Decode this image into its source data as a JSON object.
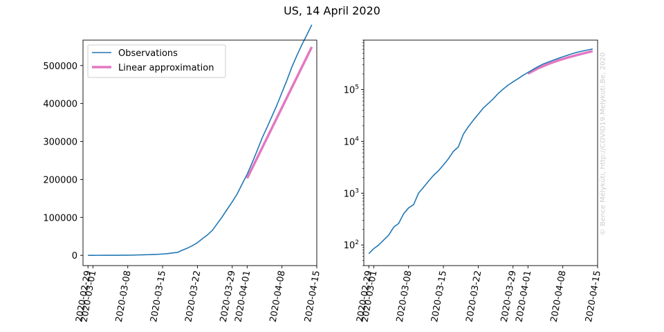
{
  "figure": {
    "title": "US, 14 April 2020",
    "watermark": "© Bence Mélykúti, http://COVID19.Melykuti.Be, 2020"
  },
  "chart_data": [
    {
      "type": "line",
      "yscale": "linear",
      "title": "",
      "xlabel": "",
      "ylabel": "",
      "xlim": [
        "2020-02-28",
        "2020-04-15"
      ],
      "ylim": [
        -27000,
        567000
      ],
      "yticks": [
        0,
        100000,
        200000,
        300000,
        400000,
        500000
      ],
      "ytick_labels": [
        "0",
        "100000",
        "200000",
        "300000",
        "400000",
        "500000"
      ],
      "xticks": [
        "2020-02-29",
        "2020-03-01",
        "2020-03-08",
        "2020-03-15",
        "2020-03-22",
        "2020-03-29",
        "2020-04-01",
        "2020-04-08",
        "2020-04-15"
      ],
      "grid": false,
      "legend": "top-left",
      "series": [
        {
          "name": "Observations",
          "color": "#1f77b4",
          "x": [
            "2020-02-29",
            "2020-03-01",
            "2020-03-02",
            "2020-03-03",
            "2020-03-04",
            "2020-03-05",
            "2020-03-06",
            "2020-03-07",
            "2020-03-08",
            "2020-03-09",
            "2020-03-10",
            "2020-03-11",
            "2020-03-12",
            "2020-03-13",
            "2020-03-14",
            "2020-03-15",
            "2020-03-16",
            "2020-03-17",
            "2020-03-18",
            "2020-03-19",
            "2020-03-20",
            "2020-03-21",
            "2020-03-22",
            "2020-03-23",
            "2020-03-24",
            "2020-03-25",
            "2020-03-26",
            "2020-03-27",
            "2020-03-28",
            "2020-03-29",
            "2020-03-30",
            "2020-03-31",
            "2020-04-01",
            "2020-04-02",
            "2020-04-03",
            "2020-04-04",
            "2020-04-05",
            "2020-04-06",
            "2020-04-07",
            "2020-04-08",
            "2020-04-09",
            "2020-04-10",
            "2020-04-11",
            "2020-04-12",
            "2020-04-13",
            "2020-04-14"
          ],
          "values": [
            68,
            85,
            100,
            125,
            155,
            220,
            260,
            400,
            520,
            600,
            1000,
            1300,
            1700,
            2200,
            2700,
            3500,
            4600,
            6400,
            7800,
            13700,
            19100,
            25500,
            33300,
            43800,
            53700,
            65800,
            83800,
            101700,
            121500,
            140900,
            161800,
            188200,
            213400,
            243600,
            275600,
            308900,
            337100,
            366600,
            396200,
            429000,
            461400,
            496500,
            526400,
            554800,
            580600,
            607600
          ]
        },
        {
          "name": "Linear approximation",
          "color": "#e377c2",
          "x": [
            "2020-04-01",
            "2020-04-14"
          ],
          "values": [
            203000,
            549000
          ]
        }
      ]
    },
    {
      "type": "line",
      "yscale": "log",
      "title": "",
      "xlabel": "",
      "ylabel": "",
      "xlim": [
        "2020-02-28",
        "2020-04-15"
      ],
      "ylim": [
        40,
        900000
      ],
      "yticks": [
        100,
        1000,
        10000,
        100000
      ],
      "ytick_labels": [
        [
          "10",
          "2"
        ],
        [
          "10",
          "3"
        ],
        [
          "10",
          "4"
        ],
        [
          "10",
          "5"
        ]
      ],
      "xticks": [
        "2020-02-29",
        "2020-03-01",
        "2020-03-08",
        "2020-03-15",
        "2020-03-22",
        "2020-03-29",
        "2020-04-01",
        "2020-04-08",
        "2020-04-15"
      ],
      "grid": false,
      "legend": "",
      "series": [
        {
          "name": "Linear approximation",
          "color": "#e377c2",
          "x": [
            "2020-04-01",
            "2020-04-03",
            "2020-04-05",
            "2020-04-07",
            "2020-04-09",
            "2020-04-11",
            "2020-04-13",
            "2020-04-14"
          ],
          "values": [
            203000,
            256000,
            309000,
            362000,
            415000,
            468000,
            522000,
            549000
          ]
        },
        {
          "name": "Observations",
          "color": "#1f77b4",
          "x": [
            "2020-02-29",
            "2020-03-01",
            "2020-03-02",
            "2020-03-03",
            "2020-03-04",
            "2020-03-05",
            "2020-03-06",
            "2020-03-07",
            "2020-03-08",
            "2020-03-09",
            "2020-03-10",
            "2020-03-11",
            "2020-03-12",
            "2020-03-13",
            "2020-03-14",
            "2020-03-15",
            "2020-03-16",
            "2020-03-17",
            "2020-03-18",
            "2020-03-19",
            "2020-03-20",
            "2020-03-21",
            "2020-03-22",
            "2020-03-23",
            "2020-03-24",
            "2020-03-25",
            "2020-03-26",
            "2020-03-27",
            "2020-03-28",
            "2020-03-29",
            "2020-03-30",
            "2020-03-31",
            "2020-04-01",
            "2020-04-02",
            "2020-04-03",
            "2020-04-04",
            "2020-04-05",
            "2020-04-06",
            "2020-04-07",
            "2020-04-08",
            "2020-04-09",
            "2020-04-10",
            "2020-04-11",
            "2020-04-12",
            "2020-04-13",
            "2020-04-14"
          ],
          "values": [
            68,
            85,
            100,
            125,
            155,
            220,
            260,
            400,
            520,
            600,
            1000,
            1300,
            1700,
            2200,
            2700,
            3500,
            4600,
            6400,
            7800,
            13700,
            19100,
            25500,
            33300,
            43800,
            53700,
            65800,
            83800,
            101700,
            121500,
            140900,
            161800,
            188200,
            213400,
            243600,
            275600,
            308900,
            337100,
            366600,
            396200,
            429000,
            461400,
            496500,
            526400,
            554800,
            580600,
            607600
          ]
        }
      ]
    }
  ]
}
